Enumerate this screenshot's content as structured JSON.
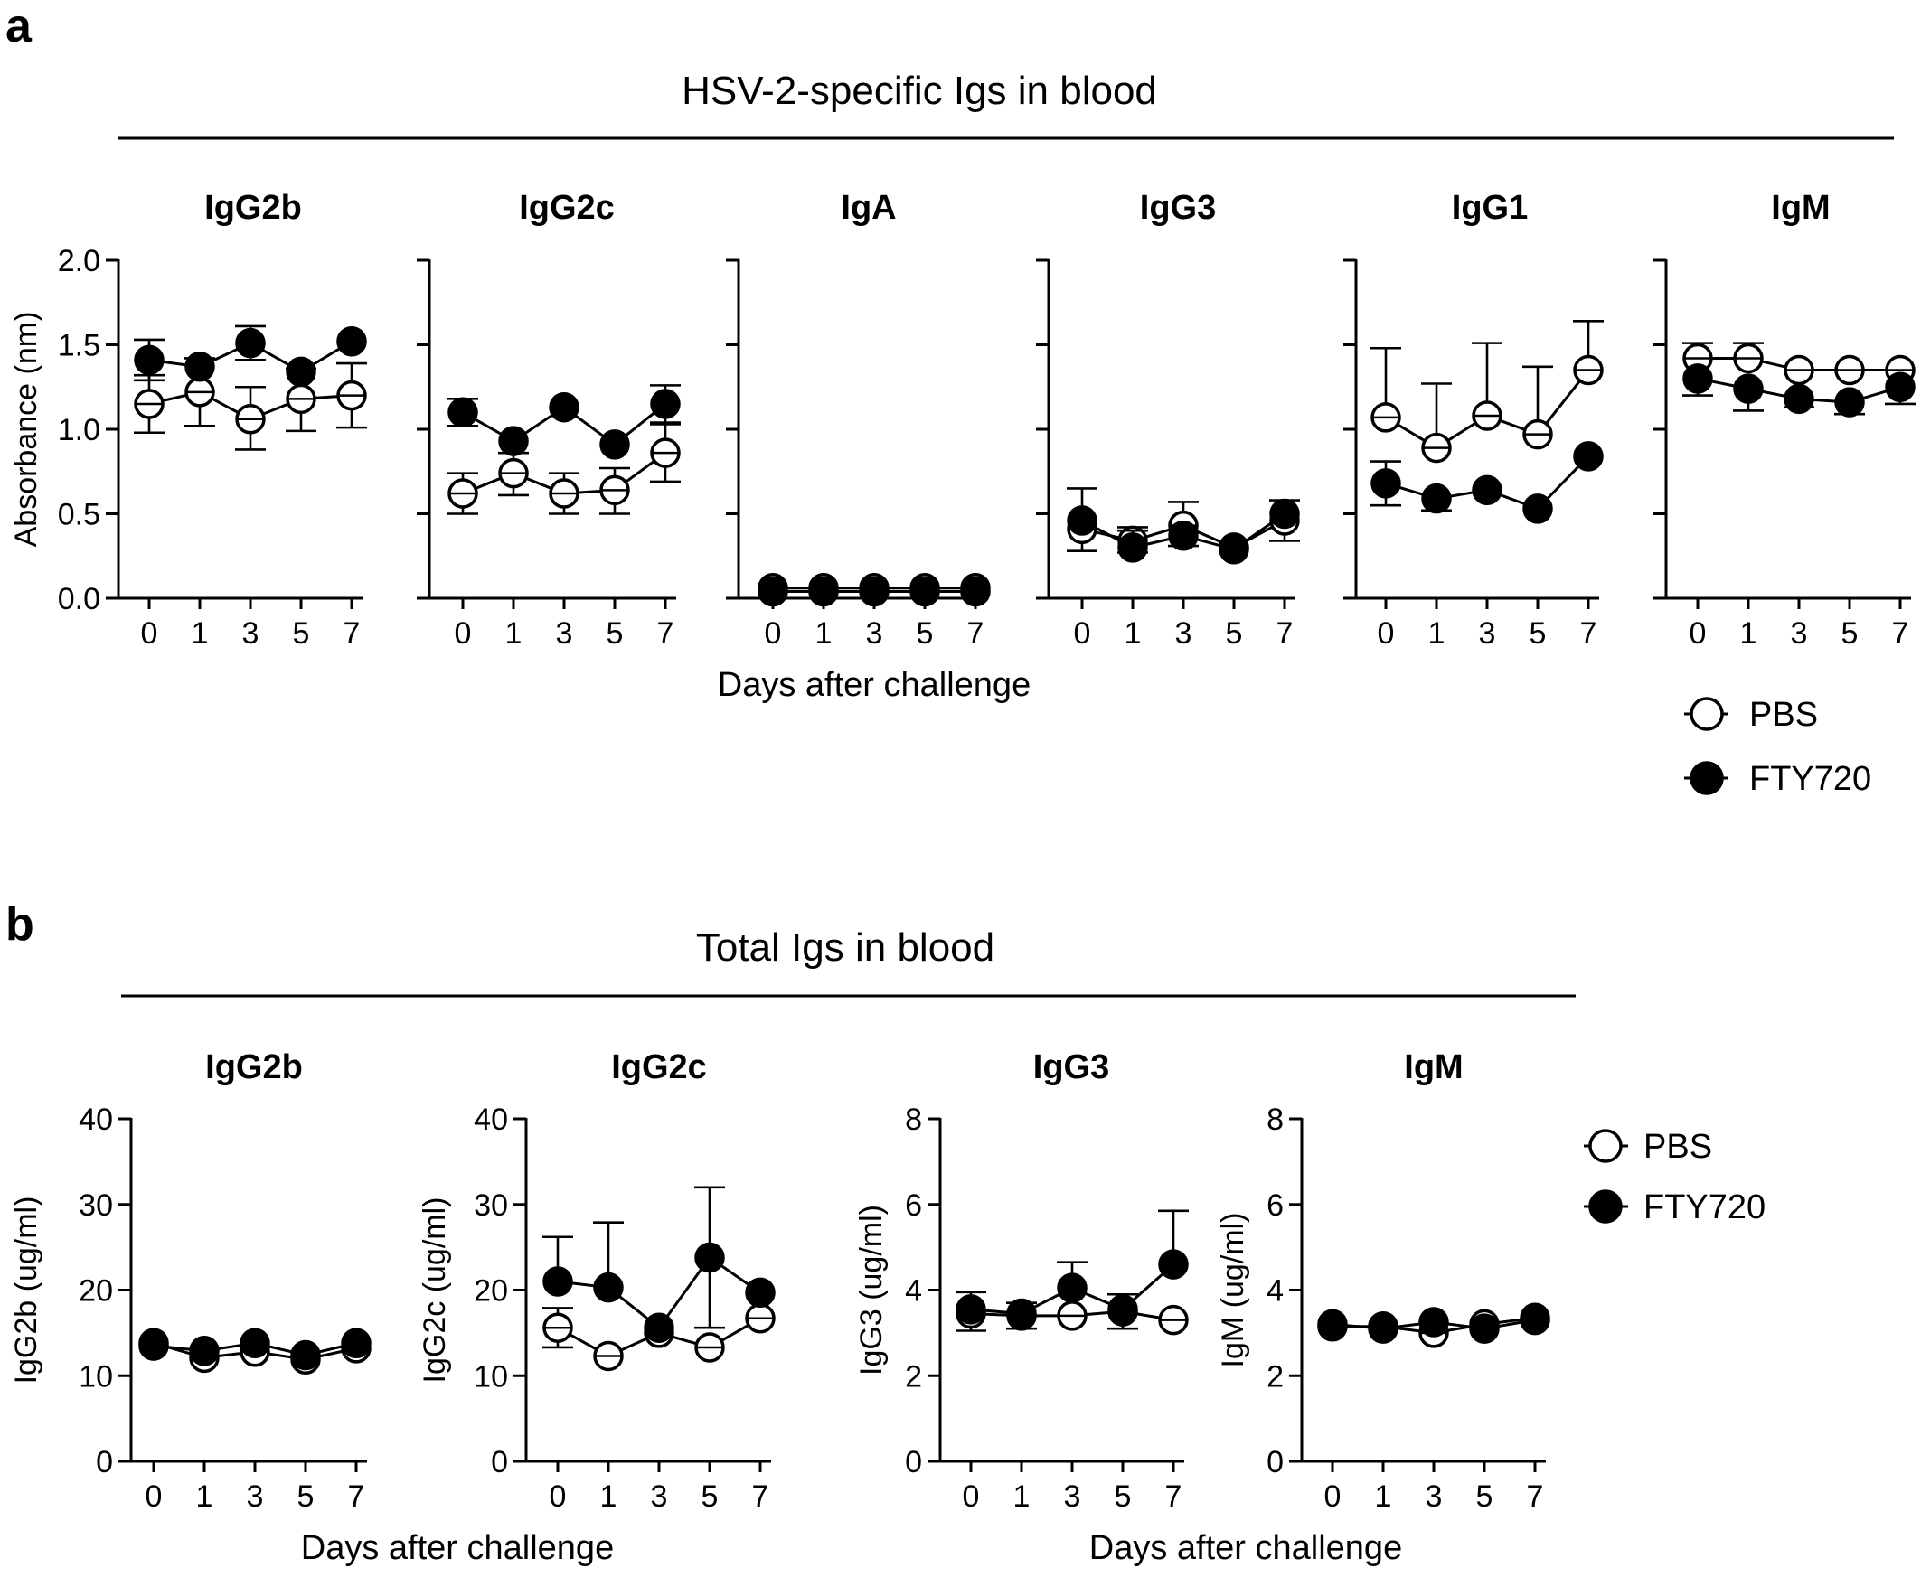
{
  "panels": {
    "a": {
      "letter": "a",
      "title": "HSV-2-specific Igs in blood",
      "ylabel": "Absorbance (nm)",
      "xlabel": "Days after challenge",
      "legend": [
        "PBS",
        "FTY720"
      ]
    },
    "b": {
      "letter": "b",
      "title": "Total Igs in blood",
      "xlabel_left": "Days after challenge",
      "xlabel_right": "Days after challenge",
      "legend": [
        "PBS",
        "FTY720"
      ]
    }
  },
  "chart_data": [
    {
      "type": "line",
      "panel": "a",
      "title": "IgG2b",
      "ylabel": "Absorbance (nm)",
      "categories": [
        "0",
        "1",
        "3",
        "5",
        "7"
      ],
      "ylim": [
        0,
        2.0
      ],
      "yticks": [
        0.0,
        0.5,
        1.0,
        1.5,
        2.0
      ],
      "ytick_labels": [
        "0.0",
        "0.5",
        "1.0",
        "1.5",
        "2.0"
      ],
      "series": [
        {
          "name": "PBS",
          "values": [
            1.15,
            1.22,
            1.06,
            1.18,
            1.2
          ],
          "err_up": [
            0.17,
            0.2,
            0.19,
            0.18,
            0.19
          ],
          "err_down": [
            0.17,
            0.2,
            0.18,
            0.19,
            0.19
          ]
        },
        {
          "name": "FTY720",
          "values": [
            1.41,
            1.37,
            1.51,
            1.34,
            1.52
          ],
          "err_up": [
            0.12,
            0.0,
            0.1,
            0.0,
            0.0
          ],
          "err_down": [
            0.12,
            0.0,
            0.1,
            0.0,
            0.0
          ]
        }
      ]
    },
    {
      "type": "line",
      "panel": "a",
      "title": "IgG2c",
      "categories": [
        "0",
        "1",
        "3",
        "5",
        "7"
      ],
      "ylim": [
        0,
        2.0
      ],
      "yticks": [
        0.0,
        0.5,
        1.0,
        1.5,
        2.0
      ],
      "ytick_labels": [],
      "series": [
        {
          "name": "PBS",
          "values": [
            0.62,
            0.74,
            0.62,
            0.64,
            0.86
          ],
          "err_up": [
            0.12,
            0.12,
            0.12,
            0.13,
            0.17
          ],
          "err_down": [
            0.12,
            0.13,
            0.12,
            0.14,
            0.17
          ]
        },
        {
          "name": "FTY720",
          "values": [
            1.1,
            0.93,
            1.13,
            0.91,
            1.15
          ],
          "err_up": [
            0.08,
            0.0,
            0.0,
            0.0,
            0.11
          ],
          "err_down": [
            0.08,
            0.0,
            0.0,
            0.0,
            0.11
          ]
        }
      ]
    },
    {
      "type": "line",
      "panel": "a",
      "title": "IgA",
      "categories": [
        "0",
        "1",
        "3",
        "5",
        "7"
      ],
      "ylim": [
        0,
        2.0
      ],
      "yticks": [
        0.0,
        0.5,
        1.0,
        1.5,
        2.0
      ],
      "ytick_labels": [],
      "series": [
        {
          "name": "PBS",
          "values": [
            0.06,
            0.06,
            0.06,
            0.06,
            0.06
          ],
          "err_up": [
            0,
            0,
            0,
            0,
            0
          ],
          "err_down": [
            0,
            0,
            0,
            0,
            0
          ]
        },
        {
          "name": "FTY720",
          "values": [
            0.04,
            0.04,
            0.04,
            0.04,
            0.04
          ],
          "err_up": [
            0,
            0,
            0,
            0,
            0
          ],
          "err_down": [
            0,
            0,
            0,
            0,
            0
          ]
        }
      ]
    },
    {
      "type": "line",
      "panel": "a",
      "title": "IgG3",
      "categories": [
        "0",
        "1",
        "3",
        "5",
        "7"
      ],
      "ylim": [
        0,
        2.0
      ],
      "yticks": [
        0.0,
        0.5,
        1.0,
        1.5,
        2.0
      ],
      "ytick_labels": [],
      "series": [
        {
          "name": "PBS",
          "values": [
            0.41,
            0.34,
            0.43,
            0.3,
            0.46
          ],
          "err_up": [
            0.0,
            0.08,
            0.14,
            0.0,
            0.12
          ],
          "err_down": [
            0.13,
            0.07,
            0.12,
            0.0,
            0.12
          ]
        },
        {
          "name": "FTY720",
          "values": [
            0.46,
            0.3,
            0.37,
            0.29,
            0.5
          ],
          "err_up": [
            0.19,
            0.1,
            0.0,
            0.0,
            0.0
          ],
          "err_down": [
            0.0,
            0.0,
            0.0,
            0.0,
            0.0
          ]
        }
      ]
    },
    {
      "type": "line",
      "panel": "a",
      "title": "IgG1",
      "categories": [
        "0",
        "1",
        "3",
        "5",
        "7"
      ],
      "ylim": [
        0,
        2.0
      ],
      "yticks": [
        0.0,
        0.5,
        1.0,
        1.5,
        2.0
      ],
      "ytick_labels": [],
      "series": [
        {
          "name": "PBS",
          "values": [
            1.07,
            0.89,
            1.08,
            0.97,
            1.35
          ],
          "err_up": [
            0.41,
            0.38,
            0.43,
            0.4,
            0.29
          ],
          "err_down": [
            0.0,
            0.0,
            0.0,
            0.0,
            0.0
          ]
        },
        {
          "name": "FTY720",
          "values": [
            0.68,
            0.59,
            0.64,
            0.53,
            0.84
          ],
          "err_up": [
            0.13,
            0.0,
            0.0,
            0.0,
            0.0
          ],
          "err_down": [
            0.13,
            0.07,
            0.0,
            0.0,
            0.0
          ]
        }
      ]
    },
    {
      "type": "line",
      "panel": "a",
      "title": "IgM",
      "categories": [
        "0",
        "1",
        "3",
        "5",
        "7"
      ],
      "ylim": [
        0,
        2.0
      ],
      "yticks": [
        0.0,
        0.5,
        1.0,
        1.5,
        2.0
      ],
      "ytick_labels": [],
      "series": [
        {
          "name": "PBS",
          "values": [
            1.42,
            1.42,
            1.35,
            1.35,
            1.35
          ],
          "err_up": [
            0.09,
            0.09,
            0.0,
            0.0,
            0.0
          ],
          "err_down": [
            0.0,
            0.0,
            0.0,
            0.0,
            0.0
          ]
        },
        {
          "name": "FTY720",
          "values": [
            1.3,
            1.24,
            1.18,
            1.16,
            1.25
          ],
          "err_up": [
            0.0,
            0.0,
            0.0,
            0.0,
            0.0
          ],
          "err_down": [
            0.1,
            0.13,
            0.05,
            0.07,
            0.1
          ]
        }
      ]
    },
    {
      "type": "line",
      "panel": "b",
      "title": "IgG2b",
      "ylabel": "IgG2b (ug/ml)",
      "categories": [
        "0",
        "1",
        "3",
        "5",
        "7"
      ],
      "ylim": [
        0,
        40
      ],
      "yticks": [
        0,
        10,
        20,
        30,
        40
      ],
      "ytick_labels": [
        "0",
        "10",
        "20",
        "30",
        "40"
      ],
      "series": [
        {
          "name": "PBS",
          "values": [
            13.8,
            12.1,
            12.8,
            11.9,
            13.2
          ],
          "err_up": [
            0,
            0,
            0,
            0,
            0
          ],
          "err_down": [
            0,
            0,
            0,
            0,
            0
          ]
        },
        {
          "name": "FTY720",
          "values": [
            13.5,
            12.9,
            13.8,
            12.4,
            13.8
          ],
          "err_up": [
            0,
            0,
            0,
            0,
            0
          ],
          "err_down": [
            0,
            0,
            0,
            0,
            0
          ]
        }
      ]
    },
    {
      "type": "line",
      "panel": "b",
      "title": "IgG2c",
      "ylabel": "IgG2c (ug/ml)",
      "categories": [
        "0",
        "1",
        "3",
        "5",
        "7"
      ],
      "ylim": [
        0,
        40
      ],
      "yticks": [
        0,
        10,
        20,
        30,
        40
      ],
      "ytick_labels": [
        "0",
        "10",
        "20",
        "30",
        "40"
      ],
      "series": [
        {
          "name": "PBS",
          "values": [
            15.6,
            12.3,
            15.0,
            13.3,
            16.7
          ],
          "err_up": [
            2.3,
            0,
            0,
            0,
            0
          ],
          "err_down": [
            2.3,
            0,
            0,
            0,
            0
          ]
        },
        {
          "name": "FTY720",
          "values": [
            21.0,
            20.3,
            15.6,
            23.8,
            19.7
          ],
          "err_up": [
            5.2,
            7.6,
            0,
            8.2,
            0
          ],
          "err_down": [
            0,
            0,
            0,
            8.2,
            0
          ]
        }
      ]
    },
    {
      "type": "line",
      "panel": "b",
      "title": "IgG3",
      "ylabel": "IgG3 (ug/ml)",
      "categories": [
        "0",
        "1",
        "3",
        "5",
        "7"
      ],
      "ylim": [
        0,
        8
      ],
      "yticks": [
        0,
        2,
        4,
        6,
        8
      ],
      "ytick_labels": [
        "0",
        "2",
        "4",
        "6",
        "8"
      ],
      "series": [
        {
          "name": "PBS",
          "values": [
            3.45,
            3.4,
            3.4,
            3.5,
            3.3
          ],
          "err_up": [
            0,
            0,
            0,
            0,
            0
          ],
          "err_down": [
            0.4,
            0.3,
            0,
            0.4,
            0
          ]
        },
        {
          "name": "FTY720",
          "values": [
            3.55,
            3.45,
            4.05,
            3.55,
            4.6
          ],
          "err_up": [
            0.4,
            0.25,
            0.6,
            0.35,
            1.25
          ],
          "err_down": [
            0,
            0,
            0,
            0,
            0
          ]
        }
      ]
    },
    {
      "type": "line",
      "panel": "b",
      "title": "IgM",
      "ylabel": "IgM (ug/ml)",
      "categories": [
        "0",
        "1",
        "3",
        "5",
        "7"
      ],
      "ylim": [
        0,
        8
      ],
      "yticks": [
        0,
        2,
        4,
        6,
        8
      ],
      "ytick_labels": [
        "0",
        "2",
        "4",
        "6",
        "8"
      ],
      "series": [
        {
          "name": "PBS",
          "values": [
            3.15,
            3.15,
            3.0,
            3.2,
            3.35
          ],
          "err_up": [
            0,
            0,
            0,
            0,
            0
          ],
          "err_down": [
            0,
            0,
            0,
            0,
            0
          ]
        },
        {
          "name": "FTY720",
          "values": [
            3.2,
            3.1,
            3.25,
            3.1,
            3.3
          ],
          "err_up": [
            0,
            0,
            0,
            0,
            0
          ],
          "err_down": [
            0,
            0,
            0,
            0,
            0
          ]
        }
      ]
    }
  ]
}
